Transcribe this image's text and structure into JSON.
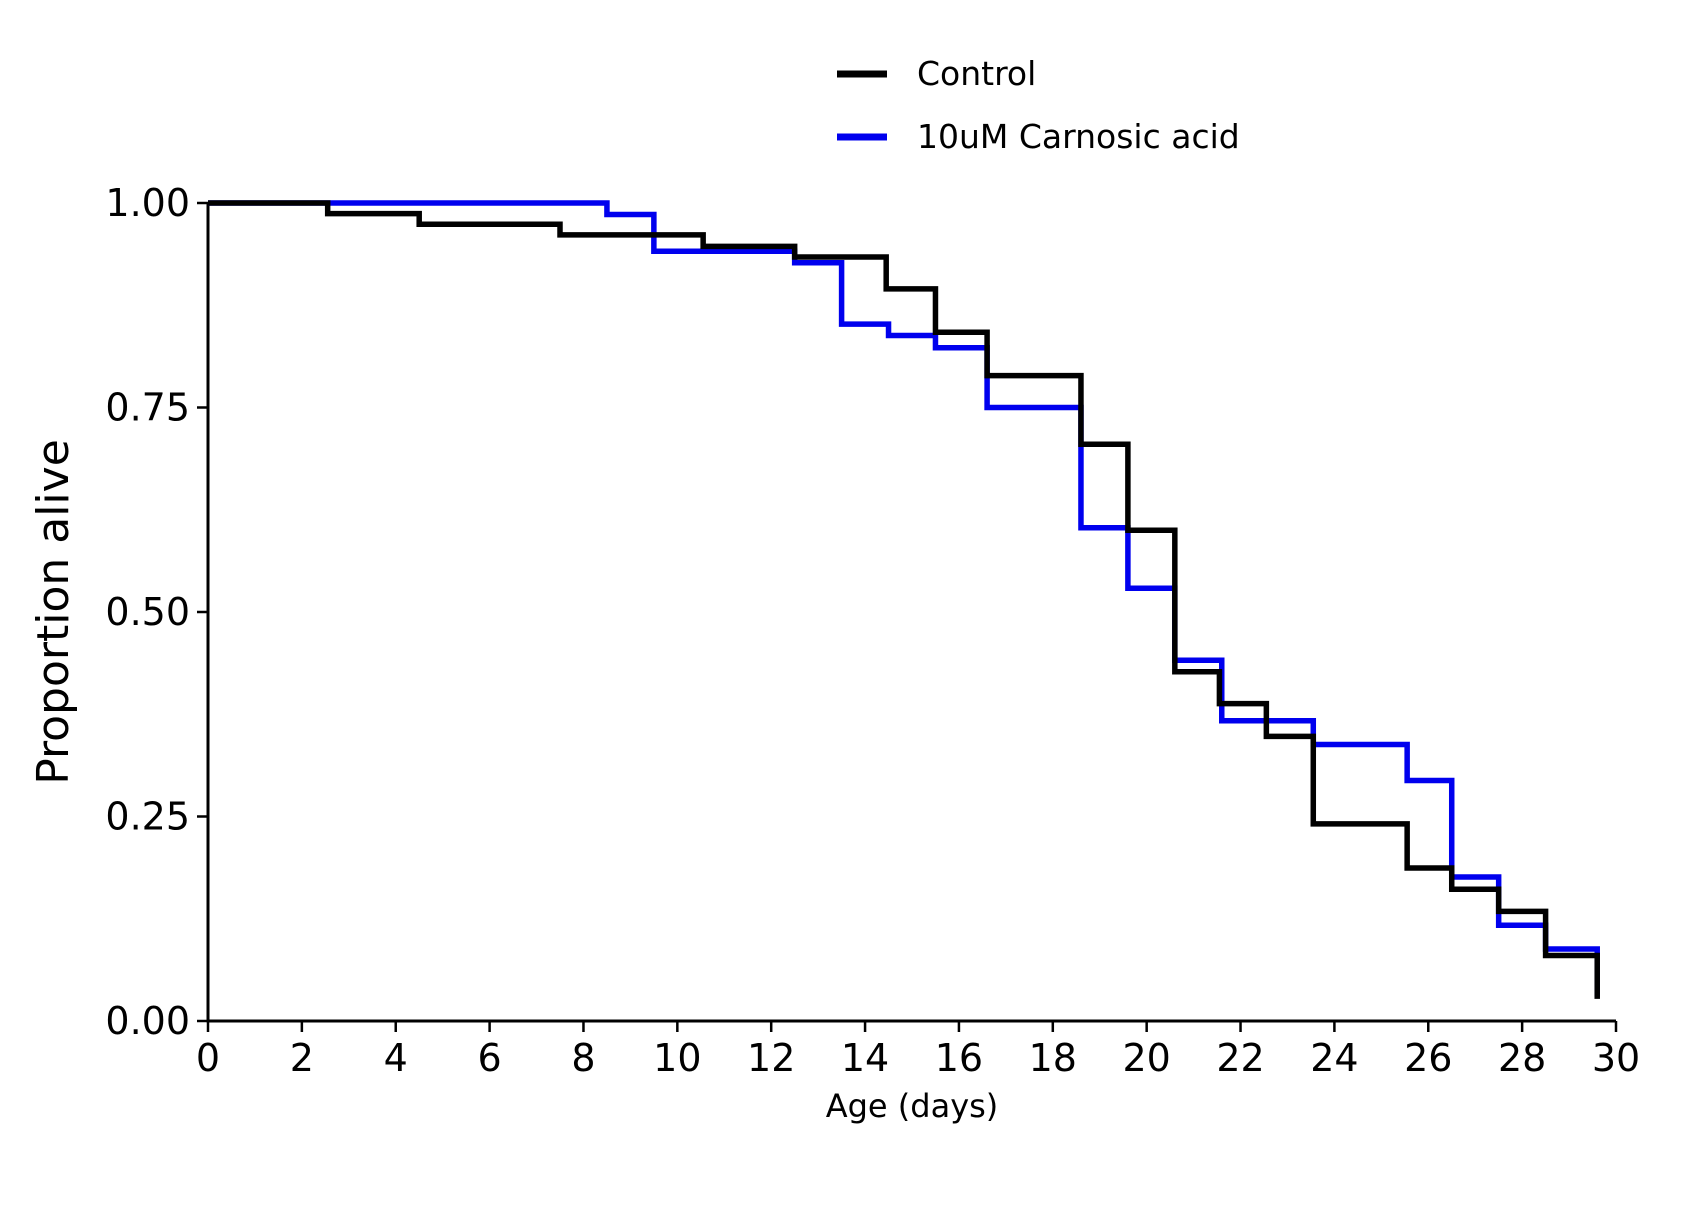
{
  "chart_data": {
    "type": "line",
    "subtype": "step",
    "title": "",
    "xlabel": "Age (days)",
    "ylabel": "Proportion alive",
    "xlim": [
      0,
      30
    ],
    "ylim": [
      0,
      1
    ],
    "x_ticks": [
      0,
      2,
      4,
      6,
      8,
      10,
      12,
      14,
      16,
      18,
      20,
      22,
      24,
      26,
      28,
      30
    ],
    "x_tick_labels": [
      "0",
      "2",
      "4",
      "6",
      "8",
      "10",
      "12",
      "14",
      "16",
      "18",
      "20",
      "22",
      "24",
      "26",
      "28",
      "30"
    ],
    "y_ticks": [
      0,
      0.25,
      0.5,
      0.75,
      1.0
    ],
    "y_tick_labels": [
      "0.00",
      "0.25",
      "0.50",
      "0.75",
      "1.00"
    ],
    "grid": false,
    "legend": "top-center",
    "series": [
      {
        "name": "Control",
        "color": "#000000",
        "x": [
          0,
          2.55,
          4.5,
          7.5,
          10.55,
          12.5,
          14.45,
          15.5,
          16.6,
          18.6,
          19.6,
          20.6,
          21.55,
          22.55,
          23.55,
          25.55,
          26.5,
          27.5,
          28.5,
          29.6
        ],
        "y": [
          1.0,
          0.987,
          0.974,
          0.961,
          0.947,
          0.934,
          0.895,
          0.842,
          0.789,
          0.705,
          0.6,
          0.427,
          0.388,
          0.348,
          0.241,
          0.187,
          0.161,
          0.134,
          0.08,
          0.027
        ]
      },
      {
        "name": "10uM Carnosic acid",
        "color": "#0000ee",
        "x": [
          0,
          8.5,
          9.5,
          12.5,
          13.5,
          14.5,
          15.5,
          16.6,
          18.6,
          19.6,
          20.6,
          21.6,
          23.55,
          25.55,
          26.5,
          27.5,
          28.5,
          29.6
        ],
        "y": [
          1.0,
          0.986,
          0.941,
          0.927,
          0.852,
          0.838,
          0.823,
          0.75,
          0.603,
          0.529,
          0.441,
          0.367,
          0.338,
          0.294,
          0.176,
          0.117,
          0.088,
          0.03
        ]
      }
    ]
  }
}
